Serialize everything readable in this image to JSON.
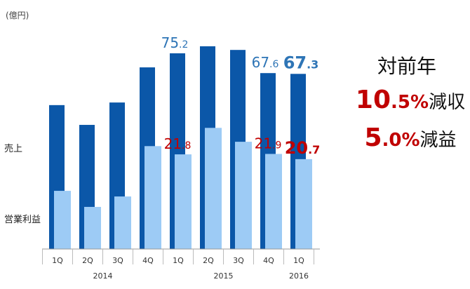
{
  "chart_data": {
    "type": "bar",
    "unit": "(億円)",
    "categories": [
      "1Q",
      "2Q",
      "3Q",
      "4Q",
      "1Q",
      "2Q",
      "3Q",
      "4Q",
      "1Q"
    ],
    "year_groups": [
      {
        "label": "2014",
        "from": 0,
        "to": 3
      },
      {
        "label": "2015",
        "from": 4,
        "to": 7
      },
      {
        "label": "2016",
        "from": 8,
        "to": 8
      }
    ],
    "series": [
      {
        "name": "売上",
        "color": "#0b57a8",
        "label_color": "#2e75b6",
        "values": [
          55.3,
          47.7,
          56.3,
          69.8,
          75.2,
          77.9,
          76.5,
          67.6,
          67.3
        ],
        "value_labels": [
          null,
          null,
          null,
          null,
          "75.2",
          null,
          null,
          "67.6",
          "67.3"
        ]
      },
      {
        "name": "営業利益",
        "color": "#9dcbf5",
        "label_color": "#c00000",
        "values": [
          13.4,
          9.7,
          12.1,
          23.7,
          21.8,
          27.9,
          24.7,
          21.9,
          20.7
        ],
        "value_labels": [
          null,
          null,
          null,
          null,
          "21.8",
          null,
          null,
          "21.9",
          "20.7"
        ]
      }
    ],
    "comparison_title": "対前年",
    "comparisons": [
      {
        "figure": "10.5%",
        "text": "減収"
      },
      {
        "figure": "5.0%",
        "text": "減益"
      }
    ]
  }
}
